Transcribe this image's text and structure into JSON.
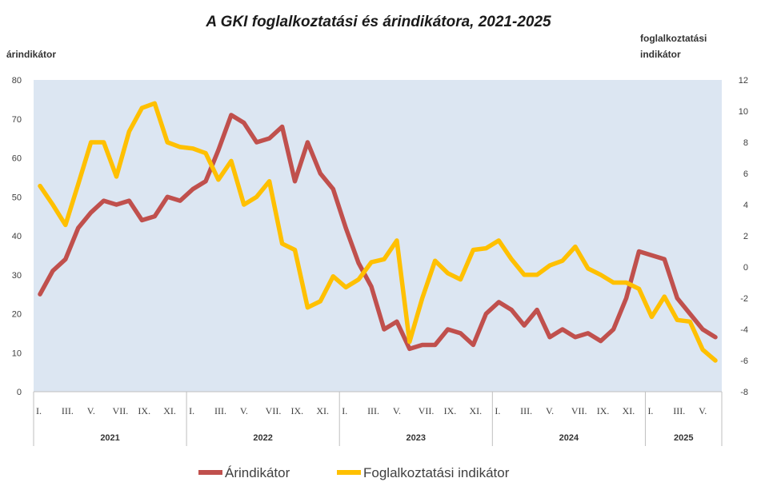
{
  "chart_data": {
    "type": "line",
    "title": "A GKI foglalkoztatási és árindikátora, 2021-2025",
    "ylabel_left": "árindikátor",
    "ylabel_right": "foglalkoztatási indikátor",
    "ylim_left": [
      0,
      80
    ],
    "ylim_right": [
      -8,
      12
    ],
    "yticks_left": [
      "0",
      "10",
      "20",
      "30",
      "40",
      "50",
      "60",
      "70",
      "80"
    ],
    "yticks_right": [
      "-8",
      "-6",
      "-4",
      "-2",
      "0",
      "2",
      "4",
      "6",
      "8",
      "10",
      "12"
    ],
    "month_labels": [
      "I.",
      "",
      "III.",
      "",
      "V.",
      "",
      "VII.",
      "",
      "IX.",
      "",
      "XI.",
      ""
    ],
    "years": [
      "2021",
      "2022",
      "2023",
      "2024",
      "2025"
    ],
    "months_per_year": [
      12,
      12,
      12,
      12,
      6
    ],
    "grid": false,
    "background_color": "#dce6f2",
    "legend_position": "bottom",
    "series": [
      {
        "name": "Árindikátor",
        "axis": "left",
        "color": "#c0504d",
        "values": [
          25,
          31,
          34,
          42,
          46,
          49,
          48,
          49,
          44,
          45,
          50,
          49,
          52,
          54,
          62,
          71,
          69,
          64,
          65,
          68,
          54,
          64,
          56,
          52,
          42,
          33,
          27,
          16,
          18,
          11,
          12,
          12,
          16,
          15,
          12,
          20,
          23,
          21,
          17,
          21,
          14,
          16,
          14,
          15,
          13,
          16,
          24,
          36,
          35,
          34,
          24,
          20,
          16,
          14
        ]
      },
      {
        "name": "Foglalkoztatási indikátor",
        "axis": "right",
        "color": "#ffc000",
        "values": [
          5.2,
          4,
          2.7,
          5.3,
          8,
          8,
          5.8,
          8.7,
          10.2,
          10.5,
          8,
          7.7,
          7.6,
          7.3,
          5.6,
          6.8,
          4,
          4.5,
          5.5,
          1.5,
          1.1,
          -2.6,
          -2.2,
          -0.6,
          -1.3,
          -0.8,
          0.3,
          0.5,
          1.7,
          -4.8,
          -2,
          0.4,
          -0.4,
          -0.8,
          1.1,
          1.2,
          1.7,
          0.5,
          -0.5,
          -0.5,
          0.1,
          0.4,
          1.3,
          -0.1,
          -0.5,
          -1,
          -1,
          -1.4,
          -3.2,
          -1.9,
          -3.4,
          -3.5,
          -5.3,
          -6
        ]
      }
    ]
  }
}
